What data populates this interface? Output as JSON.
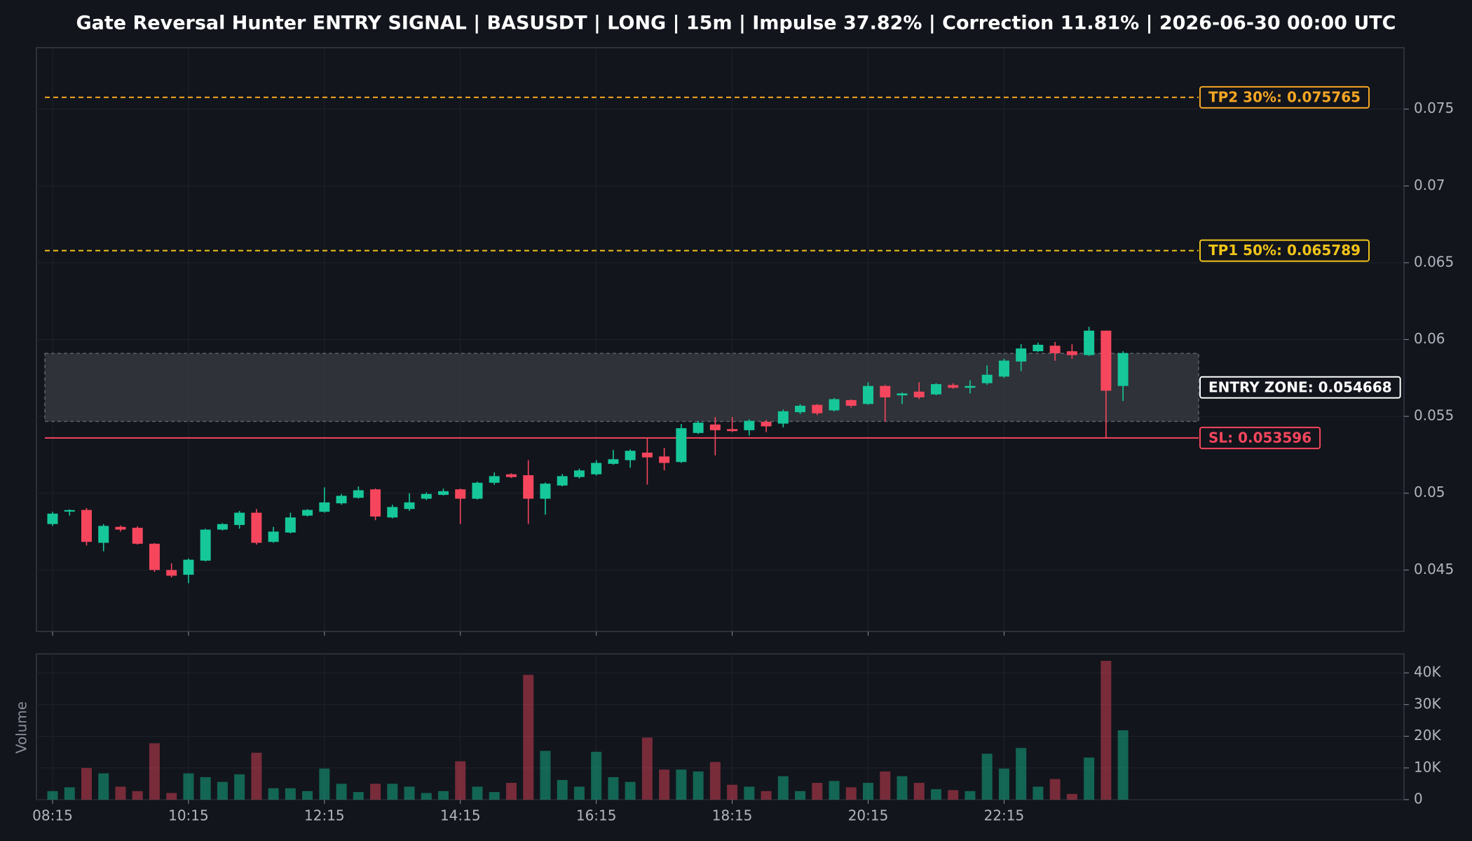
{
  "chart_data": {
    "type": "candlestick",
    "title": "Gate Reversal Hunter ENTRY SIGNAL | BASUSDT | LONG | 15m | Impulse 37.82% | Correction 11.81% | 2026-06-30 00:00 UTC",
    "categories": [
      "08:15",
      null,
      null,
      null,
      null,
      null,
      null,
      null,
      "10:15",
      null,
      null,
      null,
      null,
      null,
      null,
      null,
      "12:15",
      null,
      null,
      null,
      null,
      null,
      null,
      null,
      "14:15",
      null,
      null,
      null,
      null,
      null,
      null,
      null,
      "16:15",
      null,
      null,
      null,
      null,
      null,
      null,
      null,
      "18:15",
      null,
      null,
      null,
      null,
      null,
      null,
      null,
      "20:15",
      null,
      null,
      null,
      null,
      null,
      null,
      null,
      "22:15",
      null,
      null,
      null,
      null,
      null,
      null,
      null
    ],
    "up_color": "#16c79a",
    "down_color": "#f6465d",
    "candles": {
      "open": [
        0.04799,
        0.0488,
        0.04891,
        0.04677,
        0.04781,
        0.04775,
        0.04671,
        0.045,
        0.04469,
        0.04561,
        0.04763,
        0.04793,
        0.04873,
        0.04683,
        0.04744,
        0.04854,
        0.04879,
        0.04934,
        0.0497,
        0.05025,
        0.04842,
        0.04897,
        0.04964,
        0.04989,
        0.05025,
        0.04964,
        0.05068,
        0.05123,
        0.05117,
        0.04964,
        0.0505,
        0.05105,
        0.05123,
        0.05191,
        0.05215,
        0.05264,
        0.05239,
        0.05203,
        0.05392,
        0.05447,
        0.05417,
        0.0541,
        0.05465,
        0.05453,
        0.05527,
        0.05575,
        0.05539,
        0.05606,
        0.05581,
        0.05698,
        0.05637,
        0.05661,
        0.05643,
        0.05704,
        0.05686,
        0.05716,
        0.05759,
        0.05857,
        0.05924,
        0.0596,
        0.05924,
        0.05899,
        0.06058,
        0.05698
      ],
      "high": [
        0.04879,
        0.04895,
        0.04903,
        0.04799,
        0.0479,
        0.04785,
        0.04675,
        0.04543,
        0.04575,
        0.04768,
        0.04805,
        0.04885,
        0.04897,
        0.04781,
        0.04873,
        0.04897,
        0.05038,
        0.04995,
        0.05044,
        0.0503,
        0.04925,
        0.05,
        0.05005,
        0.0503,
        0.0503,
        0.05075,
        0.05135,
        0.0513,
        0.05215,
        0.0507,
        0.05125,
        0.0516,
        0.05215,
        0.05282,
        0.05285,
        0.05355,
        0.05295,
        0.0545,
        0.0547,
        0.05496,
        0.05496,
        0.0548,
        0.05475,
        0.05545,
        0.0558,
        0.0558,
        0.0562,
        0.0561,
        0.05722,
        0.05705,
        0.05655,
        0.05722,
        0.05716,
        0.05716,
        0.05735,
        0.05832,
        0.05875,
        0.0597,
        0.0598,
        0.05985,
        0.0597,
        0.06083,
        0.06058,
        0.05924
      ],
      "low": [
        0.04787,
        0.04854,
        0.04659,
        0.04622,
        0.0475,
        0.04665,
        0.04488,
        0.04451,
        0.04414,
        0.04555,
        0.04757,
        0.04769,
        0.04665,
        0.04677,
        0.04738,
        0.04848,
        0.04873,
        0.04925,
        0.04965,
        0.04824,
        0.04836,
        0.04885,
        0.04955,
        0.04985,
        0.048,
        0.04958,
        0.05055,
        0.05099,
        0.048,
        0.0486,
        0.05044,
        0.05095,
        0.05115,
        0.05185,
        0.05166,
        0.05056,
        0.05148,
        0.05197,
        0.05385,
        0.05246,
        0.05398,
        0.05375,
        0.05397,
        0.05428,
        0.05515,
        0.05508,
        0.05532,
        0.05557,
        0.05575,
        0.05465,
        0.0558,
        0.05612,
        0.05637,
        0.0568,
        0.05649,
        0.05705,
        0.0575,
        0.05795,
        0.0592,
        0.05862,
        0.05875,
        0.05893,
        0.05361,
        0.056
      ],
      "close": [
        0.04867,
        0.0489,
        0.04683,
        0.04787,
        0.04763,
        0.04671,
        0.045,
        0.04463,
        0.04567,
        0.04763,
        0.04799,
        0.04873,
        0.04677,
        0.0475,
        0.04842,
        0.04891,
        0.0494,
        0.04983,
        0.05019,
        0.04848,
        0.0491,
        0.0494,
        0.04995,
        0.05013,
        0.04964,
        0.05068,
        0.05111,
        0.05105,
        0.04964,
        0.05062,
        0.05111,
        0.05148,
        0.05197,
        0.05221,
        0.05276,
        0.05233,
        0.05197,
        0.05423,
        0.05459,
        0.0541,
        0.05404,
        0.05471,
        0.05435,
        0.05533,
        0.05569,
        0.0552,
        0.05612,
        0.05569,
        0.05698,
        0.05624,
        0.05649,
        0.05624,
        0.0571,
        0.05686,
        0.05698,
        0.05771,
        0.05863,
        0.05942,
        0.05966,
        0.05911,
        0.05899,
        0.06058,
        0.05667,
        0.05912
      ]
    },
    "ylim": [
      0.041,
      0.079
    ],
    "yticks": [
      0.045,
      0.05,
      0.055,
      0.06,
      0.065,
      0.07,
      0.075
    ],
    "grid": true,
    "levels": [
      {
        "label": "TP2 30%: 0.075765",
        "value": 0.075765,
        "color": "#f5a623",
        "style": "dashed"
      },
      {
        "label": "TP1 50%: 0.065789",
        "value": 0.065789,
        "color": "#f0c419",
        "style": "dashed"
      },
      {
        "label": "SL: 0.053596",
        "value": 0.053596,
        "color": "#f6465d",
        "style": "solid"
      }
    ],
    "entry_zone": {
      "label": "ENTRY ZONE: 0.054668",
      "low": 0.054668,
      "high": 0.0591,
      "color": "#ffffff"
    },
    "volume": {
      "ylabel": "Volume",
      "values": [
        2700,
        3900,
        10000,
        8300,
        4100,
        2700,
        17800,
        2100,
        8300,
        7100,
        5600,
        8000,
        14800,
        3600,
        3600,
        2700,
        9800,
        5000,
        2400,
        5000,
        5000,
        4100,
        2100,
        2700,
        12100,
        4100,
        2400,
        5300,
        39400,
        15400,
        6200,
        4100,
        15100,
        7100,
        5600,
        19600,
        9500,
        9500,
        8900,
        11900,
        4700,
        4100,
        2700,
        7400,
        2700,
        5300,
        5900,
        3900,
        5300,
        8900,
        7400,
        5300,
        3300,
        3000,
        2700,
        14500,
        9800,
        16300,
        4100,
        6500,
        1800,
        13300,
        43800,
        21900
      ],
      "ylim": [
        0,
        46000
      ],
      "yticks": [
        0,
        {
          "value": 10000,
          "label": "10K"
        },
        {
          "value": 20000,
          "label": "20K"
        },
        {
          "value": 30000,
          "label": "30K"
        },
        {
          "value": 40000,
          "label": "40K"
        }
      ]
    }
  }
}
